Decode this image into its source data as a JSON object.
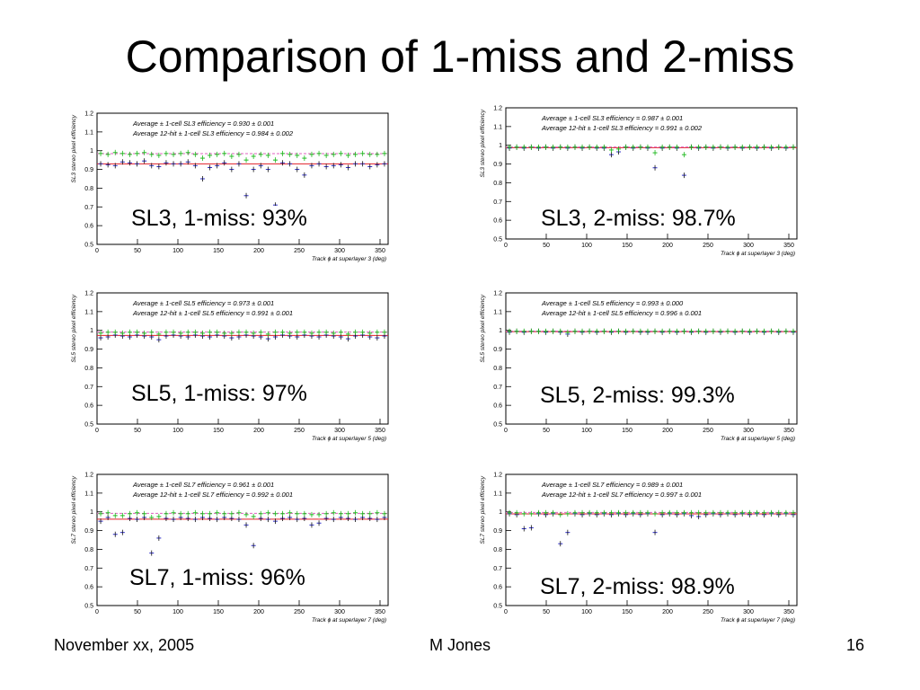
{
  "slide": {
    "title": "Comparison of 1-miss and 2-miss",
    "footer_left": "November xx, 2005",
    "footer_center": "M Jones",
    "footer_right": "16"
  },
  "colors": {
    "blue": "#2a2ac8",
    "green": "#1db81d",
    "red": "#e0202a",
    "pink": "#e060c0"
  },
  "chart_data": [
    {
      "type": "scatter",
      "caption": "SL3, 1-miss: 93%",
      "ylabel": "SL3 stereo pixel efficiency",
      "xlabel": "Track ϕ at superlayer 3   (deg)",
      "xlim": [
        0,
        360
      ],
      "ylim": [
        0.5,
        1.2
      ],
      "x_ticks": [
        "0",
        "50",
        "100",
        "150",
        "200",
        "250",
        "300",
        "350"
      ],
      "y_ticks": [
        "0.5",
        "0.6",
        "0.7",
        "0.8",
        "0.9",
        "1",
        "1.1",
        "1.2"
      ],
      "legend": [
        "Average ± 1-cell SL3 efficiency = 0.930 ± 0.001",
        "Average 12-hit ± 1-cell SL3 efficiency = 0.984 ± 0.002"
      ],
      "series": [
        {
          "values": [
            0.93,
            0.925,
            0.92,
            0.94,
            0.935,
            0.93,
            0.945,
            0.92,
            0.915,
            0.935,
            0.93,
            0.93,
            0.94,
            0.92,
            0.85,
            0.91,
            0.92,
            0.935,
            0.9,
            0.93,
            0.76,
            0.9,
            0.92,
            0.9,
            0.71,
            0.935,
            0.93,
            0.9,
            0.87,
            0.92,
            0.93,
            0.915,
            0.92,
            0.925,
            0.91,
            0.93,
            0.93,
            0.915,
            0.925,
            0.93
          ]
        },
        {
          "values": [
            0.985,
            0.98,
            0.99,
            0.985,
            0.98,
            0.985,
            0.99,
            0.98,
            0.975,
            0.985,
            0.98,
            0.985,
            0.99,
            0.98,
            0.96,
            0.975,
            0.98,
            0.985,
            0.97,
            0.98,
            0.95,
            0.97,
            0.98,
            0.975,
            0.95,
            0.985,
            0.98,
            0.975,
            0.96,
            0.98,
            0.985,
            0.975,
            0.98,
            0.985,
            0.975,
            0.98,
            0.985,
            0.98,
            0.98,
            0.985
          ]
        }
      ],
      "avg_lines": [
        0.93,
        0.984
      ]
    },
    {
      "type": "scatter",
      "caption": "SL3, 2-miss: 98.7%",
      "ylabel": "SL3 stereo pixel efficiency",
      "xlabel": "Track ϕ at superlayer 3   (deg)",
      "xlim": [
        0,
        360
      ],
      "ylim": [
        0.5,
        1.2
      ],
      "x_ticks": [
        "0",
        "50",
        "100",
        "150",
        "200",
        "250",
        "300",
        "350"
      ],
      "y_ticks": [
        "0.5",
        "0.6",
        "0.7",
        "0.8",
        "0.9",
        "1",
        "1.1",
        "1.2"
      ],
      "legend": [
        "Average ± 1-cell SL3 efficiency = 0.987 ± 0.001",
        "Average 12-hit ± 1-cell SL3 efficiency = 0.991 ± 0.002"
      ],
      "series": [
        {
          "values": [
            0.985,
            0.99,
            0.985,
            0.99,
            0.985,
            0.99,
            0.985,
            0.99,
            0.985,
            0.99,
            0.985,
            0.99,
            0.985,
            0.985,
            0.95,
            0.965,
            0.99,
            0.985,
            0.99,
            0.985,
            0.88,
            0.985,
            0.99,
            0.985,
            0.84,
            0.99,
            0.985,
            0.99,
            0.985,
            0.99,
            0.985,
            0.99,
            0.985,
            0.99,
            0.985,
            0.99,
            0.985,
            0.99,
            0.985,
            0.99
          ]
        },
        {
          "values": [
            0.99,
            0.99,
            0.99,
            0.99,
            0.99,
            0.99,
            0.99,
            0.99,
            0.99,
            0.99,
            0.99,
            0.99,
            0.99,
            0.99,
            0.975,
            0.98,
            0.99,
            0.99,
            0.99,
            0.99,
            0.96,
            0.99,
            0.99,
            0.99,
            0.95,
            0.99,
            0.99,
            0.99,
            0.99,
            0.99,
            0.99,
            0.99,
            0.99,
            0.99,
            0.99,
            0.99,
            0.99,
            0.99,
            0.99,
            0.99
          ]
        }
      ],
      "avg_lines": [
        0.987,
        0.991
      ]
    },
    {
      "type": "scatter",
      "caption": "SL5, 1-miss: 97%",
      "ylabel": "SL5 stereo pixel efficiency",
      "xlabel": "Track ϕ at superlayer 5   (deg)",
      "xlim": [
        0,
        360
      ],
      "ylim": [
        0.5,
        1.2
      ],
      "x_ticks": [
        "0",
        "50",
        "100",
        "150",
        "200",
        "250",
        "300",
        "350"
      ],
      "y_ticks": [
        "0.5",
        "0.6",
        "0.7",
        "0.8",
        "0.9",
        "1",
        "1.1",
        "1.2"
      ],
      "legend": [
        "Average ± 1-cell SL5 efficiency = 0.973 ± 0.001",
        "Average 12-hit ± 1-cell SL5 efficiency = 0.991 ± 0.001"
      ],
      "series": [
        {
          "values": [
            0.96,
            0.965,
            0.975,
            0.97,
            0.965,
            0.975,
            0.97,
            0.965,
            0.95,
            0.97,
            0.975,
            0.97,
            0.965,
            0.975,
            0.97,
            0.965,
            0.975,
            0.97,
            0.96,
            0.965,
            0.975,
            0.97,
            0.965,
            0.955,
            0.965,
            0.975,
            0.97,
            0.965,
            0.975,
            0.97,
            0.965,
            0.975,
            0.97,
            0.965,
            0.955,
            0.97,
            0.975,
            0.965,
            0.96,
            0.97
          ]
        },
        {
          "values": [
            0.985,
            0.99,
            0.99,
            0.985,
            0.99,
            0.99,
            0.985,
            0.99,
            0.98,
            0.99,
            0.99,
            0.985,
            0.99,
            0.99,
            0.985,
            0.99,
            0.99,
            0.985,
            0.985,
            0.99,
            0.99,
            0.985,
            0.99,
            0.98,
            0.99,
            0.99,
            0.985,
            0.99,
            0.99,
            0.985,
            0.99,
            0.99,
            0.985,
            0.99,
            0.98,
            0.99,
            0.99,
            0.985,
            0.99,
            0.99
          ]
        }
      ],
      "avg_lines": [
        0.973,
        0.991
      ]
    },
    {
      "type": "scatter",
      "caption": "SL5, 2-miss: 99.3%",
      "ylabel": "SL5 stereo pixel efficiency",
      "xlabel": "Track ϕ at superlayer 5   (deg)",
      "xlim": [
        0,
        360
      ],
      "ylim": [
        0.5,
        1.2
      ],
      "x_ticks": [
        "0",
        "50",
        "100",
        "150",
        "200",
        "250",
        "300",
        "350"
      ],
      "y_ticks": [
        "0.5",
        "0.6",
        "0.7",
        "0.8",
        "0.9",
        "1",
        "1.1",
        "1.2"
      ],
      "legend": [
        "Average ± 1-cell SL5 efficiency = 0.993 ± 0.000",
        "Average 12-hit ± 1-cell SL5 efficiency = 0.996 ± 0.001"
      ],
      "series": [
        {
          "values": [
            0.99,
            0.995,
            0.99,
            0.995,
            0.995,
            0.99,
            0.995,
            0.99,
            0.98,
            0.995,
            0.99,
            0.995,
            0.99,
            0.995,
            0.99,
            0.995,
            0.99,
            0.995,
            0.99,
            0.99,
            0.995,
            0.99,
            0.995,
            0.99,
            0.995,
            0.99,
            0.995,
            0.99,
            0.995,
            0.99,
            0.995,
            0.99,
            0.995,
            0.99,
            0.995,
            0.99,
            0.995,
            0.99,
            0.995,
            0.99
          ]
        },
        {
          "values": [
            0.995,
            0.995,
            0.995,
            0.995,
            0.995,
            0.995,
            0.995,
            0.995,
            0.99,
            0.995,
            0.995,
            0.995,
            0.995,
            0.995,
            0.995,
            0.995,
            0.995,
            0.995,
            0.995,
            0.995,
            0.995,
            0.995,
            0.995,
            0.995,
            0.995,
            0.995,
            0.995,
            0.995,
            0.995,
            0.995,
            0.995,
            0.995,
            0.995,
            0.995,
            0.995,
            0.995,
            0.995,
            0.995,
            0.995,
            0.995
          ]
        }
      ],
      "avg_lines": [
        0.993,
        0.996
      ]
    },
    {
      "type": "scatter",
      "caption": "SL7, 1-miss: 96%",
      "ylabel": "SL7 stereo pixel efficiency",
      "xlabel": "Track ϕ at superlayer 7   (deg)",
      "xlim": [
        0,
        360
      ],
      "ylim": [
        0.5,
        1.2
      ],
      "x_ticks": [
        "0",
        "50",
        "100",
        "150",
        "200",
        "250",
        "300",
        "350"
      ],
      "y_ticks": [
        "0.5",
        "0.6",
        "0.7",
        "0.8",
        "0.9",
        "1",
        "1.1",
        "1.2"
      ],
      "legend": [
        "Average ± 1-cell SL7 efficiency = 0.961 ± 0.001",
        "Average 12-hit ± 1-cell SL7 efficiency = 0.992 ± 0.001"
      ],
      "series": [
        {
          "values": [
            0.95,
            0.97,
            0.88,
            0.89,
            0.965,
            0.96,
            0.97,
            0.78,
            0.86,
            0.965,
            0.96,
            0.97,
            0.965,
            0.96,
            0.97,
            0.965,
            0.96,
            0.97,
            0.965,
            0.96,
            0.93,
            0.82,
            0.965,
            0.96,
            0.95,
            0.965,
            0.97,
            0.96,
            0.965,
            0.93,
            0.94,
            0.965,
            0.96,
            0.97,
            0.965,
            0.96,
            0.97,
            0.965,
            0.96,
            0.97
          ]
        },
        {
          "values": [
            0.99,
            0.995,
            0.98,
            0.98,
            0.99,
            0.995,
            0.99,
            0.97,
            0.975,
            0.99,
            0.995,
            0.99,
            0.99,
            0.995,
            0.99,
            0.99,
            0.995,
            0.99,
            0.99,
            0.995,
            0.985,
            0.975,
            0.99,
            0.995,
            0.99,
            0.99,
            0.995,
            0.99,
            0.99,
            0.985,
            0.985,
            0.99,
            0.995,
            0.99,
            0.99,
            0.995,
            0.99,
            0.99,
            0.995,
            0.99
          ]
        }
      ],
      "avg_lines": [
        0.961,
        0.992
      ]
    },
    {
      "type": "scatter",
      "caption": "SL7, 2-miss: 98.9%",
      "ylabel": "SL7 stereo pixel efficiency",
      "xlabel": "Track ϕ at superlayer 7   (deg)",
      "xlim": [
        0,
        360
      ],
      "ylim": [
        0.5,
        1.2
      ],
      "x_ticks": [
        "0",
        "50",
        "100",
        "150",
        "200",
        "250",
        "300",
        "350"
      ],
      "y_ticks": [
        "0.5",
        "0.6",
        "0.7",
        "0.8",
        "0.9",
        "1",
        "1.1",
        "1.2"
      ],
      "legend": [
        "Average ± 1-cell SL7 efficiency = 0.989 ± 0.001",
        "Average 12-hit ± 1-cell SL7 efficiency = 0.997 ± 0.001"
      ],
      "series": [
        {
          "values": [
            0.99,
            0.985,
            0.91,
            0.915,
            0.99,
            0.985,
            0.99,
            0.83,
            0.89,
            0.99,
            0.985,
            0.99,
            0.985,
            0.99,
            0.985,
            0.99,
            0.985,
            0.99,
            0.985,
            0.99,
            0.89,
            0.985,
            0.99,
            0.985,
            0.99,
            0.98,
            0.975,
            0.985,
            0.99,
            0.985,
            0.99,
            0.985,
            0.99,
            0.985,
            0.99,
            0.985,
            0.99,
            0.985,
            0.99,
            0.985
          ]
        },
        {
          "values": [
            0.995,
            0.995,
            0.99,
            0.99,
            0.995,
            0.995,
            0.995,
            0.985,
            0.99,
            0.995,
            0.995,
            0.995,
            0.995,
            0.995,
            0.995,
            0.995,
            0.995,
            0.995,
            0.995,
            0.995,
            0.99,
            0.995,
            0.995,
            0.995,
            0.995,
            0.995,
            0.995,
            0.995,
            0.995,
            0.995,
            0.995,
            0.995,
            0.995,
            0.995,
            0.995,
            0.995,
            0.995,
            0.995,
            0.995,
            0.995
          ]
        }
      ],
      "avg_lines": [
        0.989,
        0.997
      ]
    }
  ]
}
